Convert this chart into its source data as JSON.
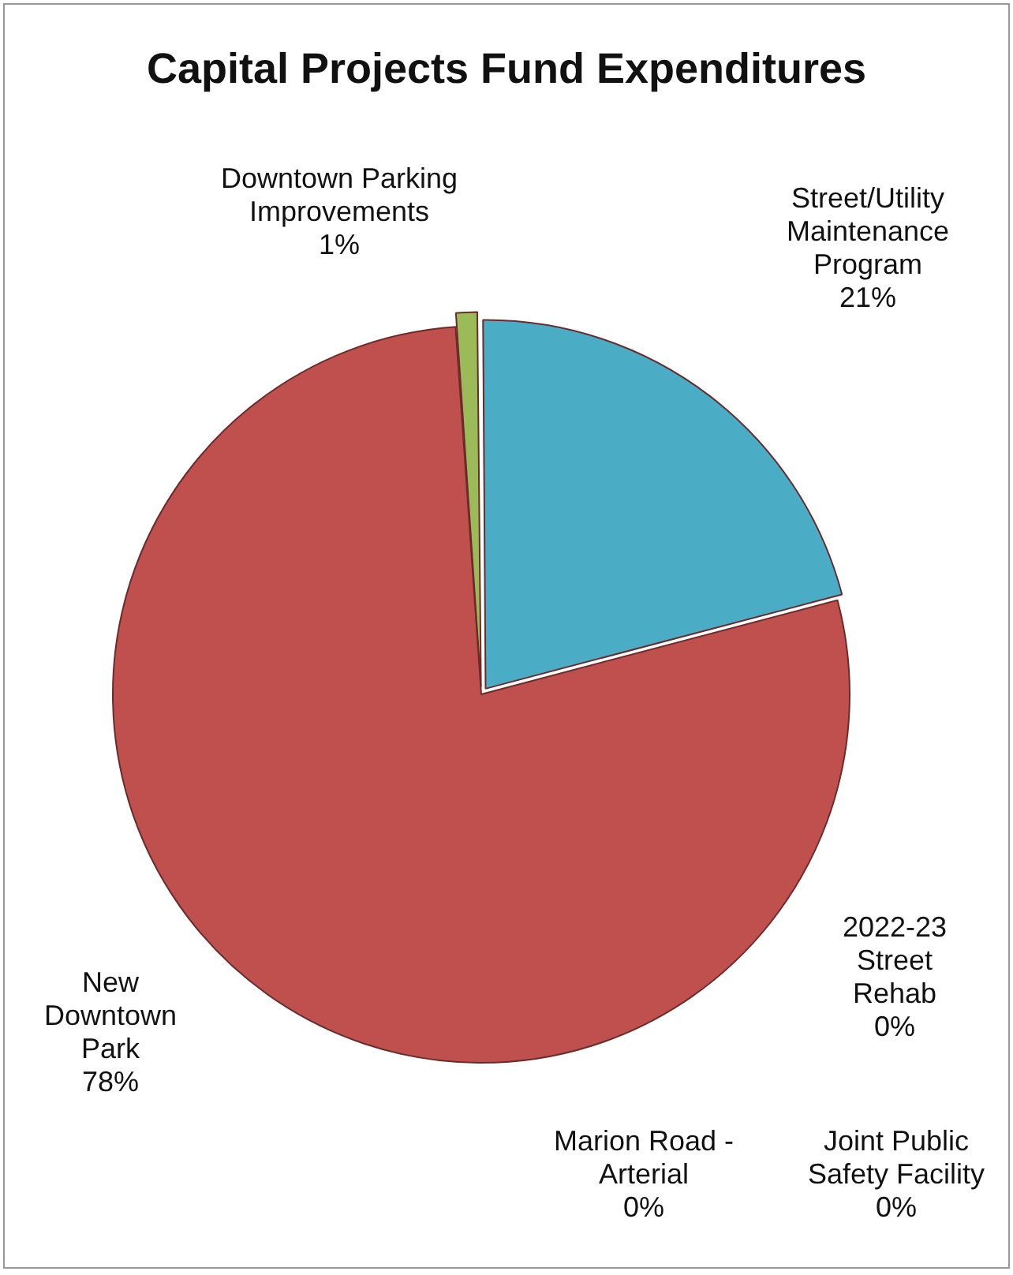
{
  "chart_data": {
    "type": "pie",
    "title": "Capital Projects Fund Expenditures",
    "categories": [
      "Downtown Parking Improvements",
      "Street/Utility Maintenance Program",
      "2022-23 Street Rehab",
      "Joint Public Safety Facility",
      "Marion Road - Arterial",
      "New Downtown Park"
    ],
    "values": [
      1,
      21,
      0,
      0,
      0,
      78
    ],
    "value_labels": [
      "1%",
      "21%",
      "0%",
      "0%",
      "0%",
      "78%"
    ],
    "colors": [
      "#9bbb59",
      "#4bacc6",
      "#f79646",
      "#8064a2",
      "#4f81bd",
      "#c0504d"
    ],
    "legend": false
  }
}
